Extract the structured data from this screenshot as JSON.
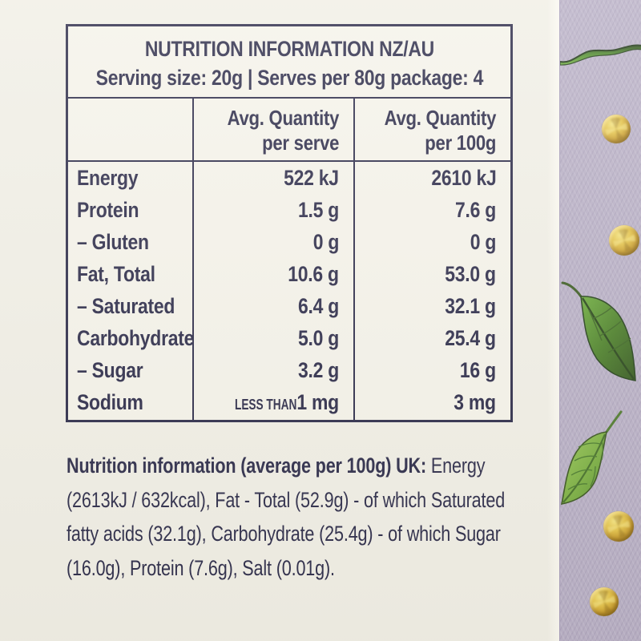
{
  "colors": {
    "background_cream": "#f1efe6",
    "label_text_navy": "#2d2c4a",
    "table_border_navy": "#2d2c4a",
    "strip_lavender": "#b9b0c6",
    "gold_dot": "#c79b2d",
    "leaf_green": "#5f9b3e"
  },
  "table": {
    "title": "NUTRITION INFORMATION NZ/AU",
    "serving_line": "Serving size: 20g | Serves per 80g package: 4",
    "col_headers": {
      "serve": "Avg. Quantity\nper serve",
      "per100": "Avg. Quantity\nper 100g"
    },
    "rows": [
      {
        "label": "Energy",
        "serve": "522 kJ",
        "per100": "2610 kJ"
      },
      {
        "label": "Protein",
        "serve": "1.5 g",
        "per100": "7.6 g"
      },
      {
        "label": "– Gluten",
        "serve": "0 g",
        "per100": "0 g"
      },
      {
        "label": "Fat, Total",
        "serve": "10.6 g",
        "per100": "53.0 g"
      },
      {
        "label": "– Saturated",
        "serve": "6.4 g",
        "per100": "32.1 g"
      },
      {
        "label": "Carbohydrate",
        "serve": "5.0 g",
        "per100": "25.4 g"
      },
      {
        "label": "– Sugar",
        "serve": "3.2 g",
        "per100": "16 g"
      },
      {
        "label": "Sodium",
        "serve_prefix": "LESS THAN",
        "serve": "1 mg",
        "per100": "3 mg"
      }
    ]
  },
  "uk_info": {
    "bold": "Nutrition information (average per 100g) UK:",
    "regular": " Energy (2613kJ / 632kcal), Fat - Total (52.9g) - of which Saturated fatty acids (32.1g), Carbohydrate (25.4g) - of which Sugar (16.0g), Protein (7.6g), Salt (0.01g)."
  },
  "decor": {
    "gold_dot_icon": "gilded gold foil dot",
    "leaf_edge_icon": "green leaf seen edge-on",
    "leaf_dark_icon": "dark green leaf pointing down-right",
    "leaf_light_icon": "light green veined leaf pointing down-left"
  }
}
